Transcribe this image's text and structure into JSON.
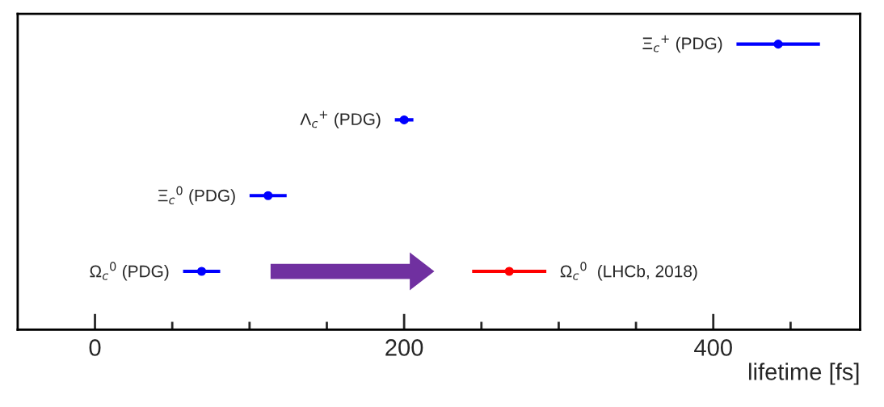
{
  "chart_data": {
    "type": "scatter",
    "orientation": "horizontal",
    "xlabel": "lifetime [fs]",
    "categories": [
      "Ξ$_{c}$$^{+}$ (PDG)",
      "Λ$_{c}$$^{+}$ (PDG)",
      "Ξ$_{c}$$^{0}$ (PDG)",
      "Ω$_{c}$$^{0}$ (PDG)"
    ],
    "series": [
      {
        "color": "#0000ff",
        "values": [
          442,
          200,
          112,
          69
        ],
        "errors": [
          27,
          6,
          12,
          12
        ]
      },
      {
        "color": "#ff0000",
        "values": [
          null,
          null,
          null,
          268
        ],
        "errors": [
          null,
          null,
          null,
          24
        ]
      }
    ],
    "annotations": [
      "Ω$_{c}$$^{0}$  (LHCb, 2018)"
    ],
    "xlim": [
      -50,
      495
    ],
    "xticks": [
      0,
      {
        "value": 50,
        "label": null
      },
      {
        "value": 100,
        "label": null
      },
      {
        "value": 150,
        "label": null
      },
      200,
      {
        "value": 250,
        "label": null
      },
      {
        "value": 300,
        "label": null
      },
      {
        "value": 350,
        "label": null
      },
      400,
      {
        "value": 450,
        "label": null
      }
    ],
    "marker": "circle",
    "grid": false
  }
}
